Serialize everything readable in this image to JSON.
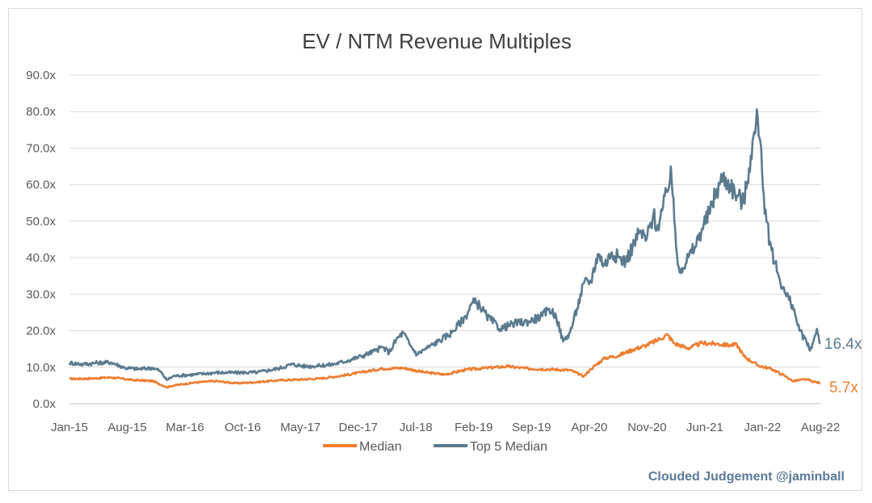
{
  "chart_data": {
    "type": "line",
    "title": "EV / NTM Revenue Multiples",
    "xlabel": "",
    "ylabel": "",
    "ylim": [
      0,
      90
    ],
    "y_ticks": [
      "0.0x",
      "10.0x",
      "20.0x",
      "30.0x",
      "40.0x",
      "50.0x",
      "60.0x",
      "70.0x",
      "80.0x",
      "90.0x"
    ],
    "x_ticks": [
      "Jan-15",
      "Aug-15",
      "Mar-16",
      "Oct-16",
      "May-17",
      "Dec-17",
      "Jul-18",
      "Feb-19",
      "Sep-19",
      "Apr-20",
      "Nov-20",
      "Jun-21",
      "Jan-22",
      "Aug-22"
    ],
    "grid": true,
    "legend_position": "bottom",
    "series": [
      {
        "name": "Median",
        "color": "#ed7d31",
        "end_label": "5.7x",
        "points": [
          [
            0,
            6.8
          ],
          [
            3,
            6.9
          ],
          [
            6,
            7.2
          ],
          [
            9,
            6.5
          ],
          [
            12,
            6.2
          ],
          [
            14,
            4.5
          ],
          [
            15,
            5.0
          ],
          [
            18,
            5.8
          ],
          [
            21,
            6.2
          ],
          [
            24,
            5.6
          ],
          [
            27,
            5.9
          ],
          [
            30,
            6.4
          ],
          [
            33,
            6.6
          ],
          [
            36,
            6.9
          ],
          [
            39,
            7.6
          ],
          [
            42,
            8.6
          ],
          [
            45,
            9.6
          ],
          [
            48,
            9.8
          ],
          [
            51,
            8.6
          ],
          [
            54,
            8.0
          ],
          [
            57,
            9.3
          ],
          [
            60,
            9.8
          ],
          [
            63,
            10.2
          ],
          [
            66,
            9.6
          ],
          [
            69,
            9.4
          ],
          [
            72,
            9.2
          ],
          [
            74,
            7.5
          ],
          [
            75,
            9.5
          ],
          [
            77,
            12.5
          ],
          [
            79,
            13.2
          ],
          [
            81,
            14.8
          ],
          [
            83,
            16.0
          ],
          [
            85,
            17.8
          ],
          [
            86,
            18.9
          ],
          [
            87,
            16.5
          ],
          [
            89,
            15.2
          ],
          [
            91,
            16.6
          ],
          [
            93,
            16.4
          ],
          [
            95,
            16.0
          ],
          [
            96,
            16.2
          ],
          [
            97,
            13.0
          ],
          [
            99,
            10.5
          ],
          [
            101,
            9.5
          ],
          [
            103,
            7.5
          ],
          [
            104,
            6.2
          ],
          [
            106,
            6.7
          ],
          [
            107,
            6.0
          ],
          [
            108,
            5.7
          ]
        ]
      },
      {
        "name": "Top 5 Median",
        "color": "#5b7a8e",
        "end_label": "16.4x",
        "points": [
          [
            0,
            11.2
          ],
          [
            2,
            10.8
          ],
          [
            4,
            11.2
          ],
          [
            6,
            11.3
          ],
          [
            8,
            9.8
          ],
          [
            10,
            9.5
          ],
          [
            12,
            9.8
          ],
          [
            13,
            9.0
          ],
          [
            14,
            6.5
          ],
          [
            15,
            7.6
          ],
          [
            18,
            8.0
          ],
          [
            21,
            8.5
          ],
          [
            24,
            8.5
          ],
          [
            27,
            8.6
          ],
          [
            30,
            9.6
          ],
          [
            32,
            10.8
          ],
          [
            34,
            10.2
          ],
          [
            36,
            10.4
          ],
          [
            38,
            10.8
          ],
          [
            40,
            11.8
          ],
          [
            42,
            13.0
          ],
          [
            44,
            14.5
          ],
          [
            45,
            15.5
          ],
          [
            46,
            14.0
          ],
          [
            47,
            17.5
          ],
          [
            48,
            19.5
          ],
          [
            49,
            16.0
          ],
          [
            50,
            13.5
          ],
          [
            51,
            14.8
          ],
          [
            53,
            17.0
          ],
          [
            55,
            19.5
          ],
          [
            57,
            24.0
          ],
          [
            58,
            27.8
          ],
          [
            59,
            27.0
          ],
          [
            60,
            24.0
          ],
          [
            62,
            20.5
          ],
          [
            64,
            22.0
          ],
          [
            66,
            22.5
          ],
          [
            68,
            24.0
          ],
          [
            69,
            26.0
          ],
          [
            70,
            24.0
          ],
          [
            71,
            17.0
          ],
          [
            72,
            19.5
          ],
          [
            73,
            26.0
          ],
          [
            74,
            33.0
          ],
          [
            75,
            33.5
          ],
          [
            76,
            41.0
          ],
          [
            77,
            38.0
          ],
          [
            78,
            41.5
          ],
          [
            79,
            40.0
          ],
          [
            80,
            39.0
          ],
          [
            81,
            43.0
          ],
          [
            82,
            47.0
          ],
          [
            83,
            45.0
          ],
          [
            84,
            52.0
          ],
          [
            84.5,
            48.0
          ],
          [
            85,
            51.0
          ],
          [
            86,
            58.0
          ],
          [
            86.5,
            65.0
          ],
          [
            87,
            50.0
          ],
          [
            87.5,
            38.0
          ],
          [
            88,
            37.0
          ],
          [
            89,
            40.0
          ],
          [
            90,
            43.0
          ],
          [
            91,
            48.0
          ],
          [
            92,
            52.0
          ],
          [
            93,
            58.0
          ],
          [
            94,
            62.0
          ],
          [
            95,
            60.0
          ],
          [
            96,
            57.0
          ],
          [
            97,
            55.0
          ],
          [
            98,
            68.0
          ],
          [
            99,
            78.5
          ],
          [
            99.5,
            70.0
          ],
          [
            100,
            52.0
          ],
          [
            101,
            42.0
          ],
          [
            102,
            35.0
          ],
          [
            103,
            30.0
          ],
          [
            104,
            27.0
          ],
          [
            105,
            20.0
          ],
          [
            106,
            17.0
          ],
          [
            106.5,
            14.5
          ],
          [
            107,
            17.0
          ],
          [
            107.5,
            20.5
          ],
          [
            108,
            16.4
          ]
        ]
      }
    ]
  },
  "watermark": "Clouded Judgement @jaminball"
}
